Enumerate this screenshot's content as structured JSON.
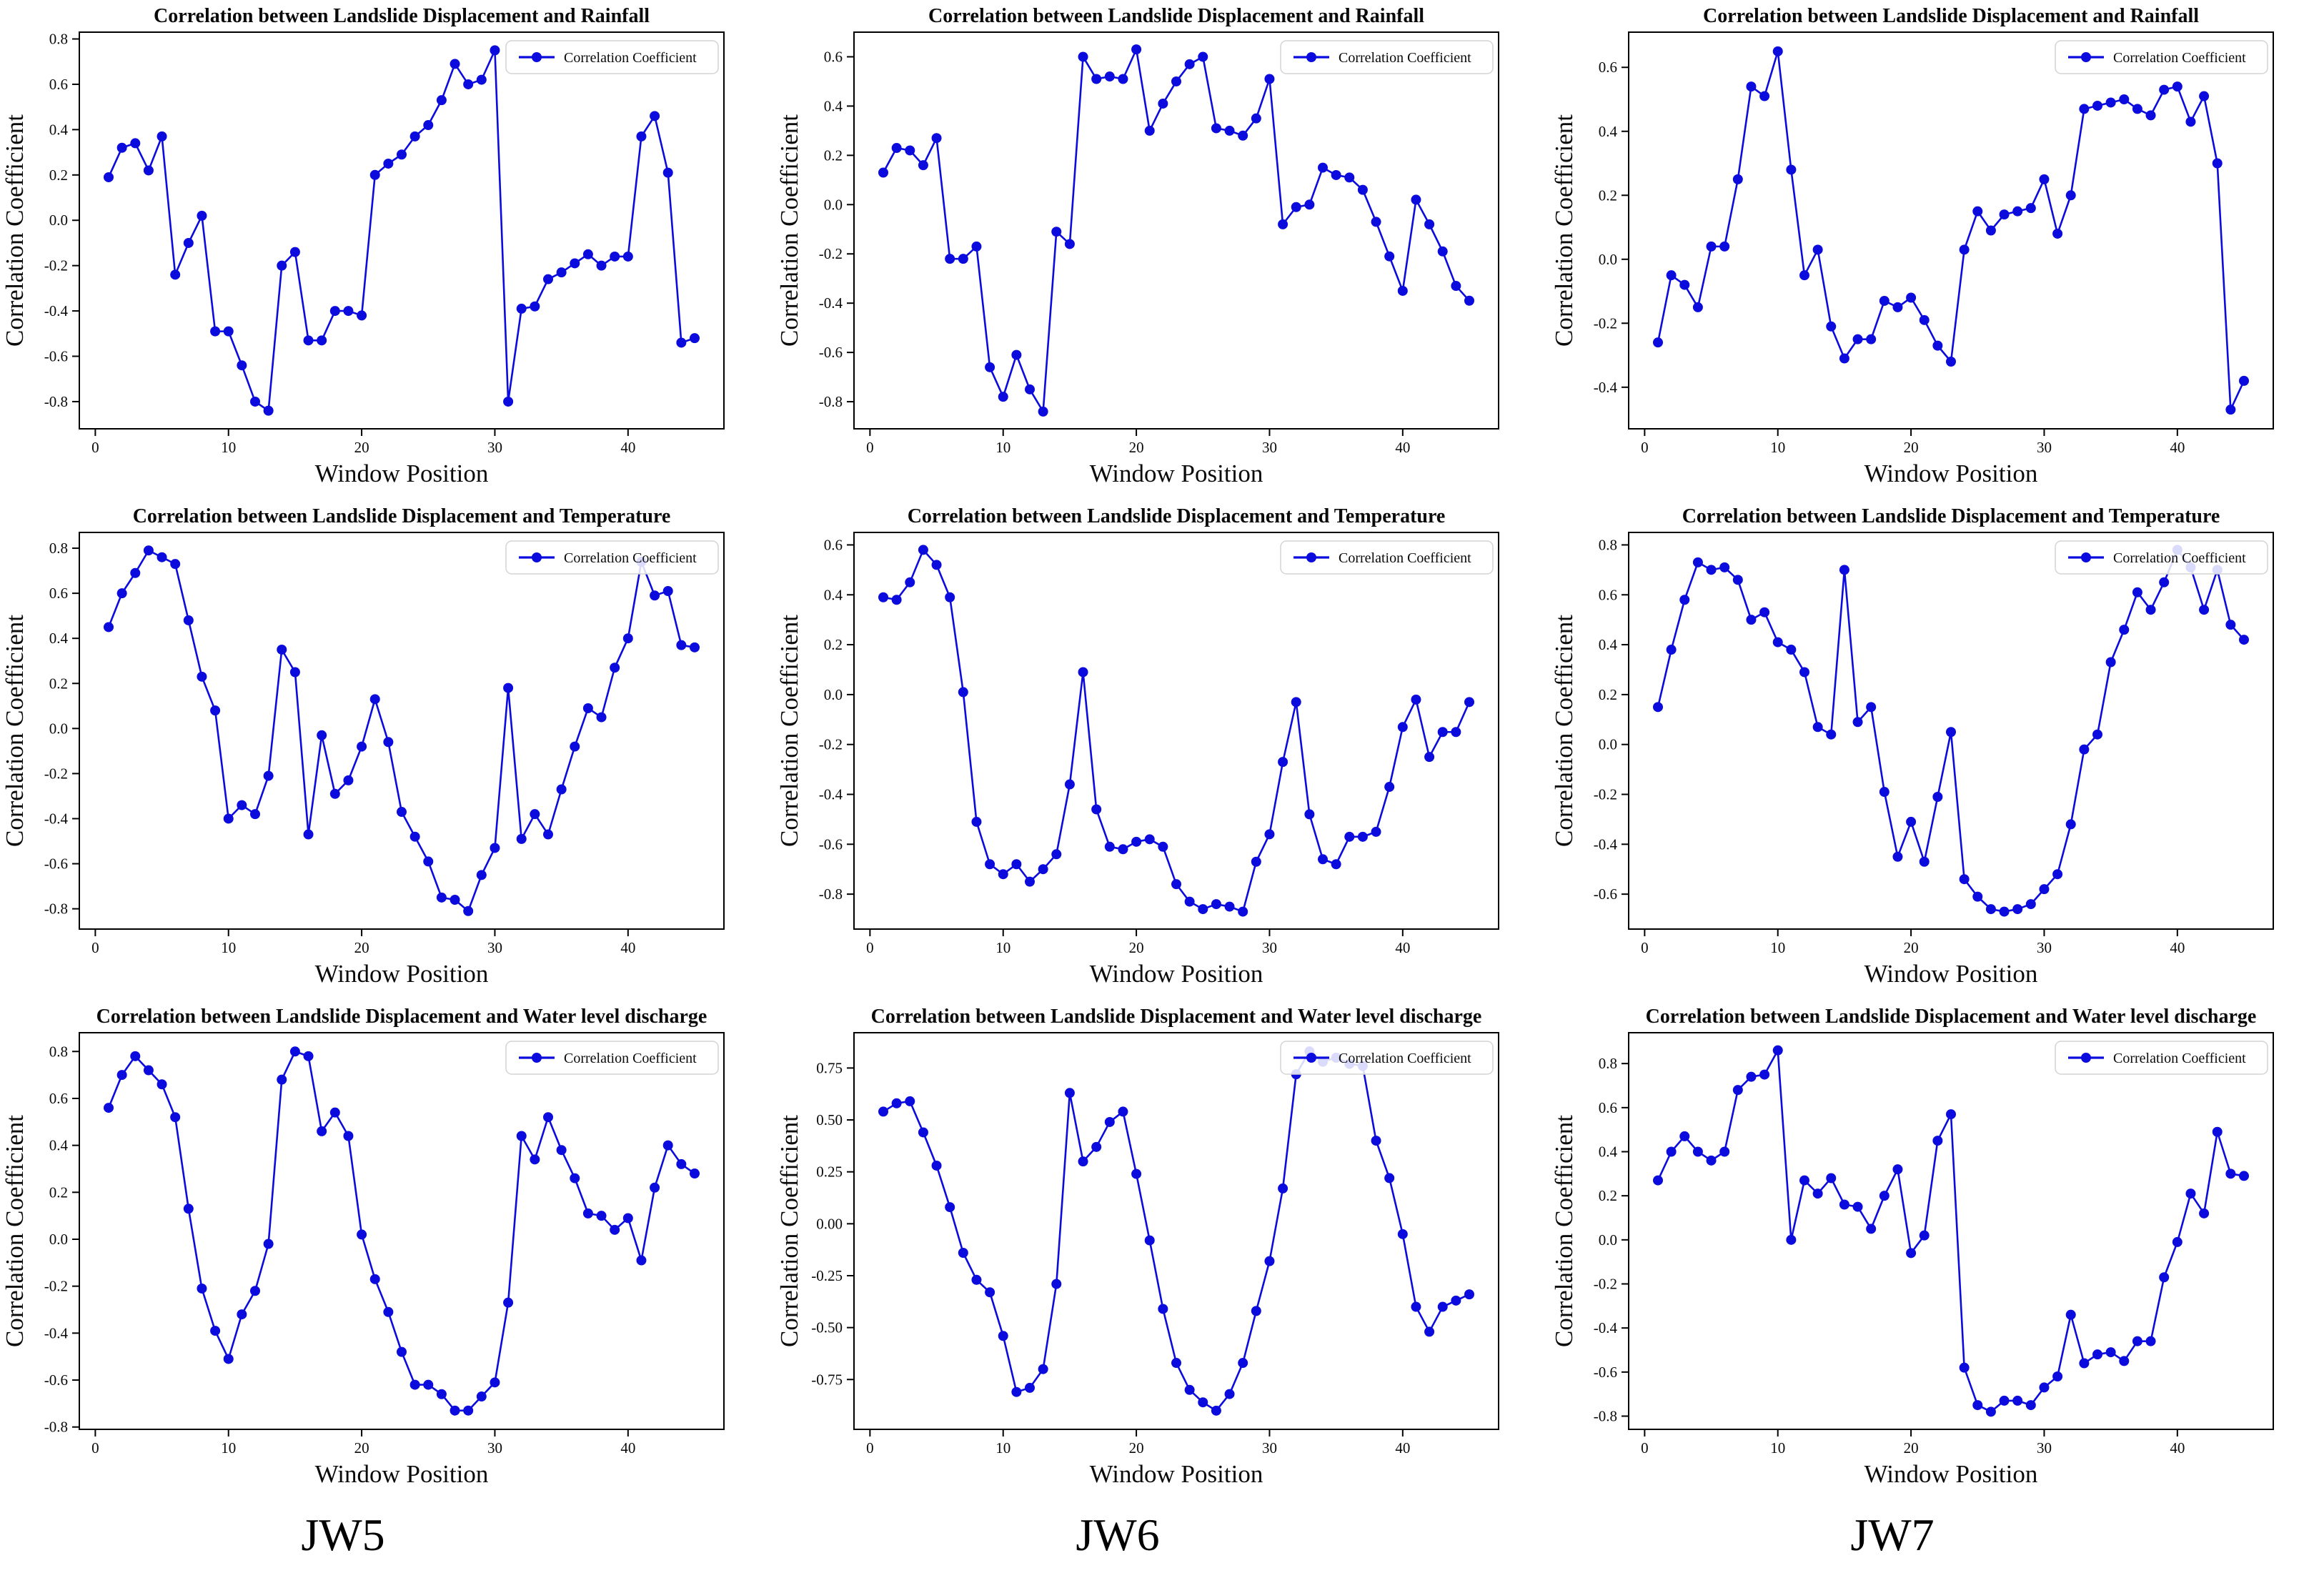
{
  "stations": [
    "JW5",
    "JW6",
    "JW7"
  ],
  "row_variables": [
    "Rainfall",
    "Temperature",
    "Water level discharge"
  ],
  "window_positions": [
    1,
    2,
    3,
    4,
    5,
    6,
    7,
    8,
    9,
    10,
    11,
    12,
    13,
    14,
    15,
    16,
    17,
    18,
    19,
    20,
    21,
    22,
    23,
    24,
    25,
    26,
    27,
    28,
    29,
    30,
    31,
    32,
    33,
    34,
    35,
    36,
    37,
    38,
    39,
    40,
    41,
    42,
    43,
    44,
    45
  ],
  "line_color": "#0b0bdd",
  "chart_data": [
    {
      "type": "line",
      "station": "JW5",
      "variable": "Rainfall",
      "title": "Correlation between Landslide Displacement and Rainfall",
      "xlabel": "Window Position",
      "ylabel": "Correlation Coefficient",
      "legend": [
        "Correlation Coefficient"
      ],
      "legend_position": "upper right",
      "grid": false,
      "marker": "circle",
      "line_color": "#0b0bdd",
      "xticks": [
        0,
        10,
        20,
        30,
        40
      ],
      "xlim": [
        -1.2,
        47.2
      ],
      "yticks": [
        0.8,
        0.6,
        0.4,
        0.2,
        0.0,
        -0.2,
        -0.4,
        -0.6,
        -0.8
      ],
      "ytick_decimals": 1,
      "ylim": [
        -0.92,
        0.83
      ],
      "values": [
        0.19,
        0.32,
        0.34,
        0.22,
        0.37,
        -0.24,
        -0.1,
        0.02,
        -0.49,
        -0.49,
        -0.64,
        -0.8,
        -0.84,
        -0.2,
        -0.14,
        -0.53,
        -0.53,
        -0.4,
        -0.4,
        -0.42,
        0.2,
        0.25,
        0.29,
        0.37,
        0.42,
        0.53,
        0.69,
        0.6,
        0.62,
        0.75,
        -0.8,
        -0.39,
        -0.38,
        -0.26,
        -0.23,
        -0.19,
        -0.15,
        -0.2,
        -0.16,
        -0.16,
        0.37,
        0.46,
        0.21,
        -0.54,
        -0.52
      ]
    },
    {
      "type": "line",
      "station": "JW6",
      "variable": "Rainfall",
      "title": "Correlation between Landslide Displacement and Rainfall",
      "xlabel": "Window Position",
      "ylabel": "Correlation Coefficient",
      "legend": [
        "Correlation Coefficient"
      ],
      "legend_position": "upper right",
      "grid": false,
      "marker": "circle",
      "line_color": "#0b0bdd",
      "xticks": [
        0,
        10,
        20,
        30,
        40
      ],
      "xlim": [
        -1.2,
        47.2
      ],
      "yticks": [
        0.6,
        0.4,
        0.2,
        0.0,
        -0.2,
        -0.4,
        -0.6,
        -0.8
      ],
      "ytick_decimals": 1,
      "ylim": [
        -0.91,
        0.7
      ],
      "values": [
        0.13,
        0.23,
        0.22,
        0.16,
        0.27,
        -0.22,
        -0.22,
        -0.17,
        -0.66,
        -0.78,
        -0.61,
        -0.75,
        -0.84,
        -0.11,
        -0.16,
        0.6,
        0.51,
        0.52,
        0.51,
        0.63,
        0.3,
        0.41,
        0.5,
        0.57,
        0.6,
        0.31,
        0.3,
        0.28,
        0.35,
        0.51,
        -0.08,
        -0.01,
        0.0,
        0.15,
        0.12,
        0.11,
        0.06,
        -0.07,
        -0.21,
        -0.35,
        0.02,
        -0.08,
        -0.19,
        -0.33,
        -0.39
      ]
    },
    {
      "type": "line",
      "station": "JW7",
      "variable": "Rainfall",
      "title": "Correlation between Landslide Displacement and Rainfall",
      "xlabel": "Window Position",
      "ylabel": "Correlation Coefficient",
      "legend": [
        "Correlation Coefficient"
      ],
      "legend_position": "upper right",
      "grid": false,
      "marker": "circle",
      "line_color": "#0b0bdd",
      "xticks": [
        0,
        10,
        20,
        30,
        40
      ],
      "xlim": [
        -1.2,
        47.2
      ],
      "yticks": [
        0.6,
        0.4,
        0.2,
        0.0,
        -0.2,
        -0.4
      ],
      "ytick_decimals": 1,
      "ylim": [
        -0.53,
        0.71
      ],
      "values": [
        -0.26,
        -0.05,
        -0.08,
        -0.15,
        0.04,
        0.04,
        0.25,
        0.54,
        0.51,
        0.65,
        0.28,
        -0.05,
        0.03,
        -0.21,
        -0.31,
        -0.25,
        -0.25,
        -0.13,
        -0.15,
        -0.12,
        -0.19,
        -0.27,
        -0.32,
        0.03,
        0.15,
        0.09,
        0.14,
        0.15,
        0.16,
        0.25,
        0.08,
        0.2,
        0.47,
        0.48,
        0.49,
        0.5,
        0.47,
        0.45,
        0.53,
        0.54,
        0.43,
        0.51,
        0.3,
        -0.47,
        -0.38
      ]
    },
    {
      "type": "line",
      "station": "JW5",
      "variable": "Temperature",
      "title": "Correlation between Landslide Displacement and Temperature",
      "xlabel": "Window Position",
      "ylabel": "Correlation Coefficient",
      "legend": [
        "Correlation Coefficient"
      ],
      "legend_position": "upper right",
      "grid": false,
      "marker": "circle",
      "line_color": "#0b0bdd",
      "xticks": [
        0,
        10,
        20,
        30,
        40
      ],
      "xlim": [
        -1.2,
        47.2
      ],
      "yticks": [
        0.8,
        0.6,
        0.4,
        0.2,
        0.0,
        -0.2,
        -0.4,
        -0.6,
        -0.8
      ],
      "ytick_decimals": 1,
      "ylim": [
        -0.89,
        0.87
      ],
      "values": [
        0.45,
        0.6,
        0.69,
        0.79,
        0.76,
        0.73,
        0.48,
        0.23,
        0.08,
        -0.4,
        -0.34,
        -0.38,
        -0.21,
        0.35,
        0.25,
        -0.47,
        -0.03,
        -0.29,
        -0.23,
        -0.08,
        0.13,
        -0.06,
        -0.37,
        -0.48,
        -0.59,
        -0.75,
        -0.76,
        -0.81,
        -0.65,
        -0.53,
        0.18,
        -0.49,
        -0.38,
        -0.47,
        -0.27,
        -0.08,
        0.09,
        0.05,
        0.27,
        0.4,
        0.74,
        0.59,
        0.61,
        0.37,
        0.36
      ]
    },
    {
      "type": "line",
      "station": "JW6",
      "variable": "Temperature",
      "title": "Correlation between Landslide Displacement and Temperature",
      "xlabel": "Window Position",
      "ylabel": "Correlation Coefficient",
      "legend": [
        "Correlation Coefficient"
      ],
      "legend_position": "upper right",
      "grid": false,
      "marker": "circle",
      "line_color": "#0b0bdd",
      "xticks": [
        0,
        10,
        20,
        30,
        40
      ],
      "xlim": [
        -1.2,
        47.2
      ],
      "yticks": [
        0.6,
        0.4,
        0.2,
        0.0,
        -0.2,
        -0.4,
        -0.6,
        -0.8
      ],
      "ytick_decimals": 1,
      "ylim": [
        -0.94,
        0.65
      ],
      "values": [
        0.39,
        0.38,
        0.45,
        0.58,
        0.52,
        0.39,
        0.01,
        -0.51,
        -0.68,
        -0.72,
        -0.68,
        -0.75,
        -0.7,
        -0.64,
        -0.36,
        0.09,
        -0.46,
        -0.61,
        -0.62,
        -0.59,
        -0.58,
        -0.61,
        -0.76,
        -0.83,
        -0.86,
        -0.84,
        -0.85,
        -0.87,
        -0.67,
        -0.56,
        -0.27,
        -0.03,
        -0.48,
        -0.66,
        -0.68,
        -0.57,
        -0.57,
        -0.55,
        -0.37,
        -0.13,
        -0.02,
        -0.25,
        -0.15,
        -0.15,
        -0.03
      ]
    },
    {
      "type": "line",
      "station": "JW7",
      "variable": "Temperature",
      "title": "Correlation between Landslide Displacement and Temperature",
      "xlabel": "Window Position",
      "ylabel": "Correlation Coefficient",
      "legend": [
        "Correlation Coefficient"
      ],
      "legend_position": "upper right",
      "grid": false,
      "marker": "circle",
      "line_color": "#0b0bdd",
      "xticks": [
        0,
        10,
        20,
        30,
        40
      ],
      "xlim": [
        -1.2,
        47.2
      ],
      "yticks": [
        0.8,
        0.6,
        0.4,
        0.2,
        0.0,
        -0.2,
        -0.4,
        -0.6
      ],
      "ytick_decimals": 1,
      "ylim": [
        -0.74,
        0.85
      ],
      "values": [
        0.15,
        0.38,
        0.58,
        0.73,
        0.7,
        0.71,
        0.66,
        0.5,
        0.53,
        0.41,
        0.38,
        0.29,
        0.07,
        0.04,
        0.7,
        0.09,
        0.15,
        -0.19,
        -0.45,
        -0.31,
        -0.47,
        -0.21,
        0.05,
        -0.54,
        -0.61,
        -0.66,
        -0.67,
        -0.66,
        -0.64,
        -0.58,
        -0.52,
        -0.32,
        -0.02,
        0.04,
        0.33,
        0.46,
        0.61,
        0.54,
        0.65,
        0.78,
        0.71,
        0.54,
        0.7,
        0.48,
        0.42
      ]
    },
    {
      "type": "line",
      "station": "JW5",
      "variable": "Water level discharge",
      "title": "Correlation between Landslide Displacement and Water level discharge",
      "xlabel": "Window Position",
      "ylabel": "Correlation Coefficient",
      "legend": [
        "Correlation Coefficient"
      ],
      "legend_position": "upper right",
      "grid": false,
      "marker": "circle",
      "line_color": "#0b0bdd",
      "xticks": [
        0,
        10,
        20,
        30,
        40
      ],
      "xlim": [
        -1.2,
        47.2
      ],
      "yticks": [
        0.8,
        0.6,
        0.4,
        0.2,
        0.0,
        -0.2,
        -0.4,
        -0.6,
        -0.8
      ],
      "ytick_decimals": 1,
      "ylim": [
        -0.81,
        0.88
      ],
      "values": [
        0.56,
        0.7,
        0.78,
        0.72,
        0.66,
        0.52,
        0.13,
        -0.21,
        -0.39,
        -0.51,
        -0.32,
        -0.22,
        -0.02,
        0.68,
        0.8,
        0.78,
        0.46,
        0.54,
        0.44,
        0.02,
        -0.17,
        -0.31,
        -0.48,
        -0.62,
        -0.62,
        -0.66,
        -0.73,
        -0.73,
        -0.67,
        -0.61,
        -0.27,
        0.44,
        0.34,
        0.52,
        0.38,
        0.26,
        0.11,
        0.1,
        0.04,
        0.09,
        -0.09,
        0.22,
        0.4,
        0.32,
        0.28
      ]
    },
    {
      "type": "line",
      "station": "JW6",
      "variable": "Water level discharge",
      "title": "Correlation between Landslide Displacement and Water level discharge",
      "xlabel": "Window Position",
      "ylabel": "Correlation Coefficient",
      "legend": [
        "Correlation Coefficient"
      ],
      "legend_position": "upper right",
      "grid": false,
      "marker": "circle",
      "line_color": "#0b0bdd",
      "xticks": [
        0,
        10,
        20,
        30,
        40
      ],
      "xlim": [
        -1.2,
        47.2
      ],
      "yticks": [
        0.75,
        0.5,
        0.25,
        0.0,
        -0.25,
        -0.5,
        -0.75
      ],
      "ytick_decimals": 2,
      "ylim": [
        -0.99,
        0.92
      ],
      "values": [
        0.54,
        0.58,
        0.59,
        0.44,
        0.28,
        0.08,
        -0.14,
        -0.27,
        -0.33,
        -0.54,
        -0.81,
        -0.79,
        -0.7,
        -0.29,
        0.63,
        0.3,
        0.37,
        0.49,
        0.54,
        0.24,
        -0.08,
        -0.41,
        -0.67,
        -0.8,
        -0.86,
        -0.9,
        -0.82,
        -0.67,
        -0.42,
        -0.18,
        0.17,
        0.72,
        0.83,
        0.78,
        0.8,
        0.77,
        0.76,
        0.4,
        0.22,
        -0.05,
        -0.4,
        -0.52,
        -0.4,
        -0.37,
        -0.34
      ]
    },
    {
      "type": "line",
      "station": "JW7",
      "variable": "Water level discharge",
      "title": "Correlation between Landslide Displacement and Water level discharge",
      "xlabel": "Window Position",
      "ylabel": "Correlation Coefficient",
      "legend": [
        "Correlation Coefficient"
      ],
      "legend_position": "upper right",
      "grid": false,
      "marker": "circle",
      "line_color": "#0b0bdd",
      "xticks": [
        0,
        10,
        20,
        30,
        40
      ],
      "xlim": [
        -1.2,
        47.2
      ],
      "yticks": [
        0.8,
        0.6,
        0.4,
        0.2,
        0.0,
        -0.2,
        -0.4,
        -0.6,
        -0.8
      ],
      "ytick_decimals": 1,
      "ylim": [
        -0.86,
        0.94
      ],
      "values": [
        0.27,
        0.4,
        0.47,
        0.4,
        0.36,
        0.4,
        0.68,
        0.74,
        0.75,
        0.86,
        0.0,
        0.27,
        0.21,
        0.28,
        0.16,
        0.15,
        0.05,
        0.2,
        0.32,
        -0.06,
        0.02,
        0.45,
        0.57,
        -0.58,
        -0.75,
        -0.78,
        -0.73,
        -0.73,
        -0.75,
        -0.67,
        -0.62,
        -0.34,
        -0.56,
        -0.52,
        -0.51,
        -0.55,
        -0.46,
        -0.46,
        -0.17,
        -0.01,
        0.21,
        0.12,
        0.49,
        0.3,
        0.29
      ]
    }
  ]
}
